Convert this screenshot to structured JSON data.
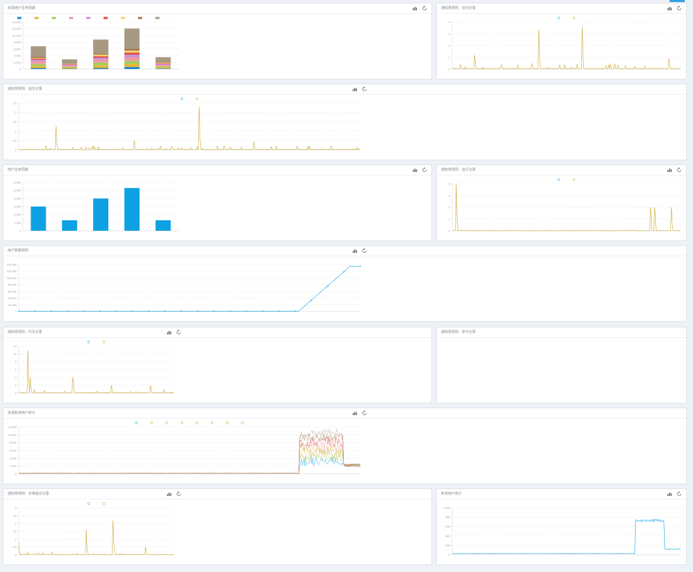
{
  "colors": {
    "accent": "#3aa0e6",
    "blue": "#0ea1e3",
    "gold": "#c8a830",
    "grid": "#d5d5d5",
    "axis": "#cccccc"
  },
  "icons": {
    "bar": "bar-chart-icon",
    "refresh": "refresh-icon"
  },
  "panels": [
    {
      "id": "p1",
      "title": "资源用户生命周期",
      "chart_data": {
        "type": "bar",
        "categories": [
          "",
          "",
          "",
          "",
          ""
        ],
        "series": [
          {
            "name": "",
            "color": "#1e88c8",
            "values": [
              300,
              100,
              300,
              600,
              150
            ]
          },
          {
            "name": "",
            "color": "#e0b83a",
            "values": [
              700,
              300,
              900,
              1000,
              350
            ]
          },
          {
            "name": "",
            "color": "#9ecf5e",
            "values": [
              500,
              250,
              700,
              800,
              300
            ]
          },
          {
            "name": "",
            "color": "#f09aa2",
            "values": [
              800,
              350,
              900,
              1100,
              400
            ]
          },
          {
            "name": "",
            "color": "#c792d6",
            "values": [
              500,
              250,
              600,
              800,
              300
            ]
          },
          {
            "name": "",
            "color": "#e0473e",
            "values": [
              300,
              150,
              400,
              600,
              200
            ]
          },
          {
            "name": "",
            "color": "#f3d27a",
            "values": [
              200,
              100,
              500,
              600,
              200
            ]
          },
          {
            "name": "",
            "color": "#a37748",
            "values": [
              300,
              100,
              300,
              600,
              150
            ]
          },
          {
            "name": "",
            "color": "#a89a82",
            "values": [
              3200,
              1300,
              4200,
              6000,
              1500
            ]
          }
        ],
        "ylim": [
          0,
          14000
        ],
        "yticks": [
          "14,000",
          "12,000",
          "10,000",
          "8,000",
          "6,000",
          "4,000",
          "2,000",
          "0"
        ]
      }
    },
    {
      "id": "p2",
      "title": "通知类规则：访问记录",
      "chart_data": {
        "type": "line",
        "legend": [
          "",
          ""
        ],
        "series": [
          {
            "name": "",
            "color": "#0ea1e3",
            "pattern": "spikes_a"
          }
        ],
        "ylim": [
          0,
          4
        ],
        "yticks": [
          "4",
          "3",
          "2",
          "1",
          "0"
        ]
      }
    },
    {
      "id": "p3",
      "title": "通知类规则：提交记录",
      "chart_data": {
        "type": "line",
        "legend": [
          "",
          ""
        ],
        "series": [
          {
            "name": "",
            "color": "#c8a830",
            "pattern": "spikes_b"
          }
        ],
        "ylim": [
          0,
          2.5
        ],
        "yticks": [
          "2.5",
          "2",
          "1.5",
          "1",
          "0.5",
          "0"
        ]
      }
    },
    {
      "id": "p4",
      "title": "用户生命周期",
      "chart_data": {
        "type": "bar",
        "categories": [
          "",
          "",
          "",
          "",
          ""
        ],
        "values": [
          3000,
          1300,
          4000,
          5300,
          1300
        ],
        "color": "#0ea1e3",
        "ylim": [
          0,
          6000
        ],
        "yticks": [
          "6,000",
          "5,000",
          "4,000",
          "3,000",
          "2,000",
          "1,000",
          "0"
        ]
      }
    },
    {
      "id": "p5",
      "title": "通知类规则：运行记录",
      "chart_data": {
        "type": "line",
        "legend": [
          "",
          ""
        ],
        "series": [
          {
            "name": "",
            "color": "#c8a830",
            "pattern": "spikes_c"
          }
        ],
        "ylim": [
          0,
          4
        ],
        "yticks": [
          "4",
          "3",
          "2",
          "1",
          "0"
        ]
      }
    },
    {
      "id": "p6",
      "title": "用户数量规则",
      "chart_data": {
        "type": "line",
        "series": [
          {
            "name": "",
            "color": "#0ea1e3",
            "pattern": "ramp"
          }
        ],
        "ylim": [
          0,
          140000
        ],
        "yticks": [
          "140,000",
          "120,000",
          "100,000",
          "80,000",
          "60,000",
          "40,000",
          "20,000",
          "0"
        ]
      }
    },
    {
      "id": "p7",
      "title": "通知类规则：中文记录",
      "chart_data": {
        "type": "line",
        "legend": [
          "",
          ""
        ],
        "series": [
          {
            "name": "",
            "color": "#c8a830",
            "pattern": "spikes_d"
          }
        ],
        "ylim": [
          0,
          12
        ],
        "yticks": [
          "12",
          "10",
          "8",
          "6",
          "4",
          "2",
          "0"
        ]
      }
    },
    {
      "id": "p8",
      "title": "通知类规则：参与记录",
      "chart_data": {
        "type": "line",
        "series": []
      }
    },
    {
      "id": "p9",
      "title": "资源新增用户统计",
      "chart_data": {
        "type": "line",
        "legend": [
          "",
          "",
          "",
          "",
          "",
          "",
          "",
          ""
        ],
        "series": [
          {
            "name": "",
            "pattern": "multi"
          }
        ],
        "ylim": [
          0,
          12000
        ],
        "yticks": [
          "12,000",
          "10,000",
          "8,000",
          "6,000",
          "4,000",
          "2,000",
          "0"
        ]
      }
    },
    {
      "id": "p10",
      "title": "通知类规则：多维提交记录",
      "chart_data": {
        "type": "line",
        "legend": [
          "",
          ""
        ],
        "series": [
          {
            "name": "",
            "color": "#c8a830",
            "pattern": "spikes_e"
          }
        ],
        "ylim": [
          0,
          3
        ],
        "yticks": [
          "3",
          "2.5",
          "2",
          "1.5",
          "1",
          "0.5",
          "0"
        ]
      }
    },
    {
      "id": "p11",
      "title": "新增用户统计",
      "chart_data": {
        "type": "line",
        "series": [
          {
            "name": "",
            "color": "#0ea1e3",
            "pattern": "jump"
          }
        ],
        "ylim": [
          0,
          1000
        ],
        "yticks": [
          "1,000",
          "800",
          "600",
          "400",
          "200",
          "0"
        ]
      }
    }
  ]
}
